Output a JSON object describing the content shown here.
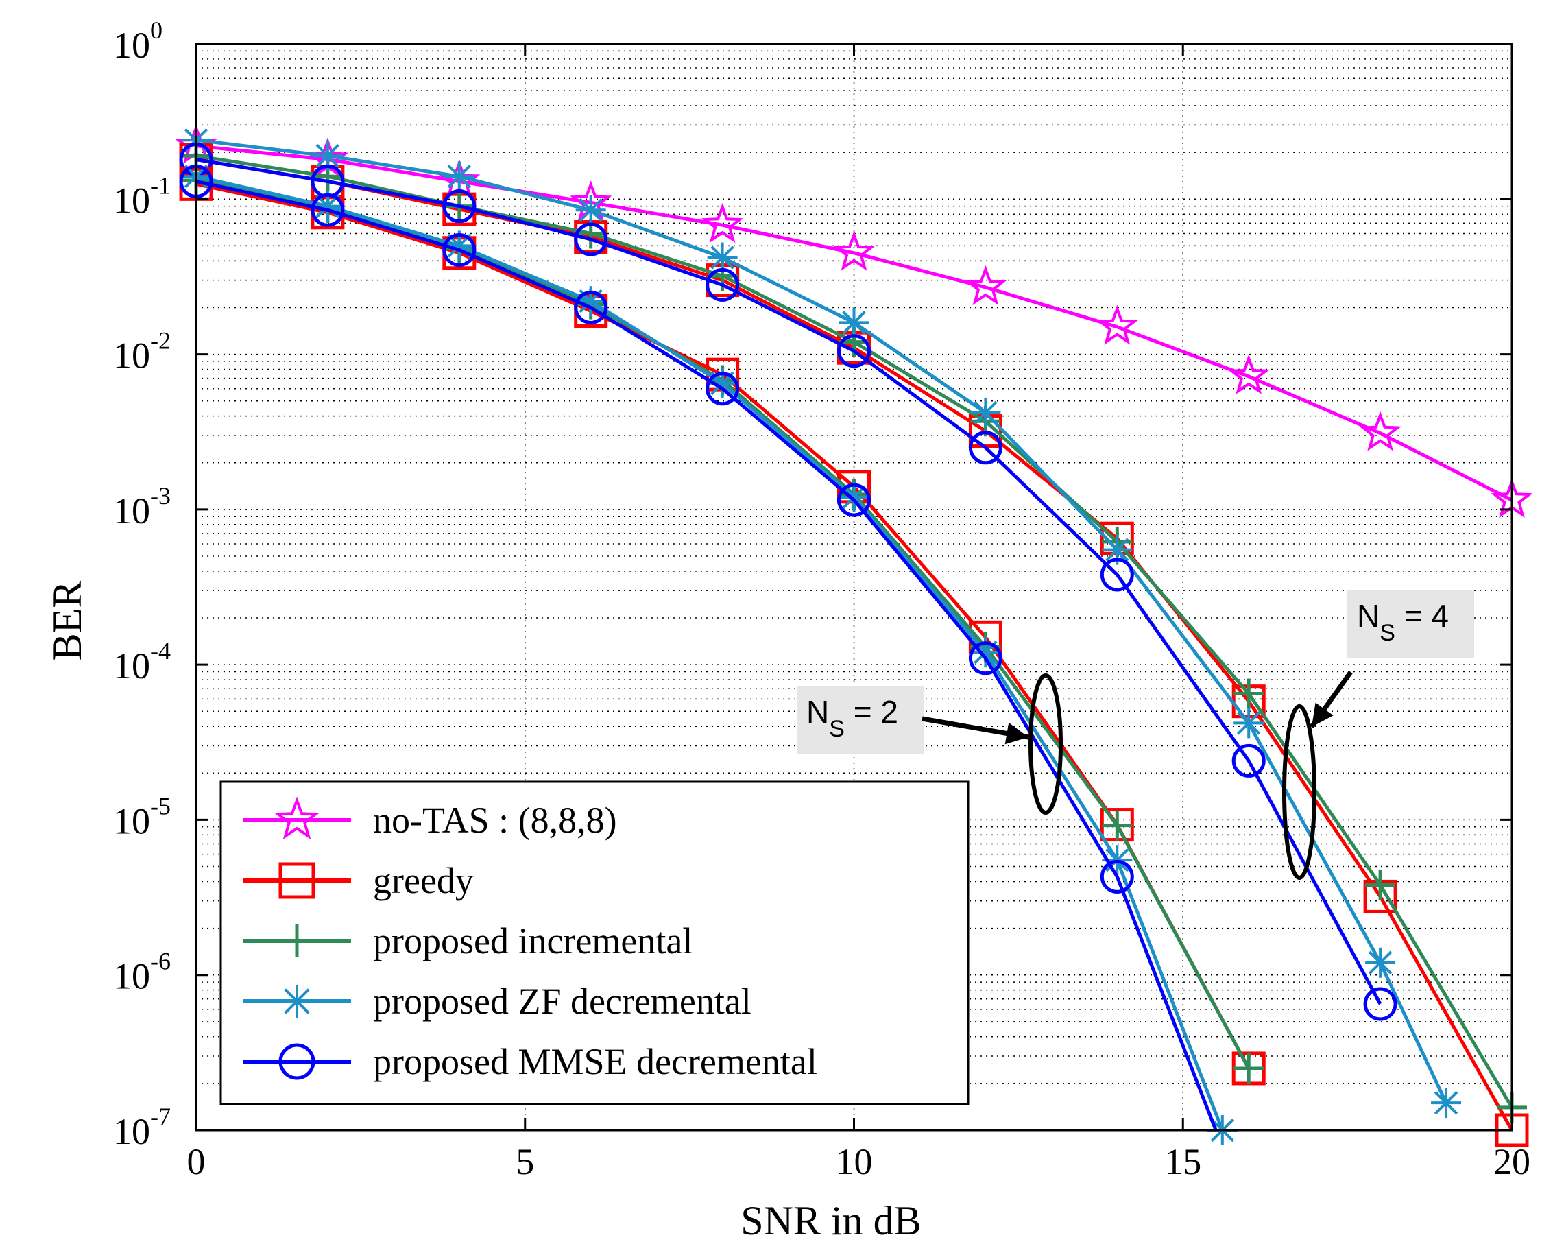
{
  "chart_data": {
    "type": "line",
    "title": "",
    "xlabel": "SNR in dB",
    "ylabel": "BER",
    "xlim": [
      0,
      20
    ],
    "ylim": [
      1e-07,
      1
    ],
    "yscale": "log",
    "grid": true,
    "xticks": [
      0,
      5,
      10,
      15,
      20
    ],
    "xtick_labels": [
      "0",
      "5",
      "10",
      "15",
      "20"
    ],
    "yticks": [
      {
        "value": 1e-07,
        "base": "10",
        "exp": "-7"
      },
      {
        "value": 1e-06,
        "base": "10",
        "exp": "-6"
      },
      {
        "value": 1e-05,
        "base": "10",
        "exp": "-5"
      },
      {
        "value": 0.0001,
        "base": "10",
        "exp": "-4"
      },
      {
        "value": 0.001,
        "base": "10",
        "exp": "-3"
      },
      {
        "value": 0.01,
        "base": "10",
        "exp": "-2"
      },
      {
        "value": 0.1,
        "base": "10",
        "exp": "-1"
      },
      {
        "value": 1,
        "base": "10",
        "exp": "0"
      }
    ],
    "legend_position": "bottom-left",
    "series": [
      {
        "name": "no-TAS : (8,8,8)",
        "color": "#ff00ff",
        "marker": "star5",
        "x": [
          0,
          2,
          4,
          6,
          8,
          10,
          12,
          14,
          16,
          18,
          20
        ],
        "y": [
          0.22,
          0.18,
          0.13,
          0.095,
          0.068,
          0.045,
          0.027,
          0.015,
          0.0072,
          0.0031,
          0.00115
        ]
      },
      {
        "name": "greedy",
        "color": "#ff0000",
        "marker": "square",
        "x": [
          0,
          2,
          4,
          6,
          8,
          10,
          12,
          14,
          16,
          18,
          20
        ],
        "y": [
          0.18,
          0.13,
          0.086,
          0.057,
          0.03,
          0.011,
          0.0032,
          0.00065,
          5.8e-05,
          3.2e-06,
          1e-07
        ]
      },
      {
        "name": "proposed incremental",
        "color": "#2e8b57",
        "marker": "plus",
        "x": [
          0,
          2,
          4,
          6,
          8,
          10,
          12,
          14,
          16,
          18,
          20
        ],
        "y": [
          0.19,
          0.14,
          0.09,
          0.06,
          0.032,
          0.012,
          0.0037,
          0.00062,
          6.5e-05,
          3.8e-06,
          1.4e-07
        ]
      },
      {
        "name": "proposed ZF decremental",
        "color": "#1e90c8",
        "marker": "asterisk",
        "x": [
          0,
          2,
          4,
          6,
          8,
          10,
          12,
          14,
          16,
          18,
          19
        ],
        "y": [
          0.24,
          0.19,
          0.14,
          0.085,
          0.042,
          0.016,
          0.0042,
          0.00055,
          4.2e-05,
          1.2e-06,
          1.5e-07
        ]
      },
      {
        "name": "proposed MMSE decremental",
        "color": "#0000ff",
        "marker": "circle",
        "x": [
          0,
          2,
          4,
          6,
          8,
          10,
          12,
          14,
          16,
          18
        ],
        "y": [
          0.18,
          0.13,
          0.09,
          0.055,
          0.028,
          0.0105,
          0.0025,
          0.00038,
          2.4e-05,
          6.5e-07
        ]
      },
      {
        "name": "greedy (N_S = 2)",
        "color": "#ff0000",
        "marker": "square",
        "legend": false,
        "x": [
          0,
          2,
          4,
          6,
          8,
          10,
          12,
          14,
          16
        ],
        "y": [
          0.125,
          0.082,
          0.045,
          0.019,
          0.0074,
          0.0014,
          0.00015,
          9.3e-06,
          2.5e-07
        ]
      },
      {
        "name": "proposed incremental (N_S = 2)",
        "color": "#2e8b57",
        "marker": "plus",
        "legend": false,
        "x": [
          0,
          2,
          4,
          6,
          8,
          10,
          12,
          14,
          16
        ],
        "y": [
          0.132,
          0.088,
          0.048,
          0.021,
          0.0068,
          0.00125,
          0.00013,
          9.2e-06,
          2.5e-07
        ]
      },
      {
        "name": "proposed ZF decremental (N_S = 2)",
        "color": "#1e90c8",
        "marker": "asterisk",
        "legend": false,
        "x": [
          0,
          2,
          4,
          6,
          8,
          10,
          12,
          14,
          15.6
        ],
        "y": [
          0.14,
          0.09,
          0.05,
          0.022,
          0.0065,
          0.0012,
          0.00012,
          5.5e-06,
          1e-07
        ]
      },
      {
        "name": "proposed MMSE decremental (N_S = 2)",
        "color": "#0000ff",
        "marker": "circle",
        "legend": false,
        "x": [
          0,
          2,
          4,
          6,
          8,
          10,
          12,
          14,
          15.5
        ],
        "y": [
          0.13,
          0.085,
          0.047,
          0.02,
          0.006,
          0.00115,
          0.00011,
          4.3e-06,
          1e-07
        ]
      }
    ],
    "annotations": [
      {
        "label": "N",
        "subscript": "S",
        "suffix": " = 2",
        "x": 13,
        "y": 3e-05
      },
      {
        "label": "N",
        "subscript": "S",
        "suffix": " = 4",
        "x": 17,
        "y": 5.5e-06
      }
    ]
  }
}
